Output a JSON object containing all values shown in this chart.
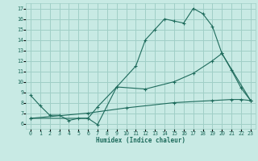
{
  "background_color": "#c8eae4",
  "grid_color": "#a0cfc7",
  "line_color": "#1e6b5c",
  "xlabel": "Humidex (Indice chaleur)",
  "xlim": [
    -0.5,
    23.5
  ],
  "ylim": [
    5.5,
    17.5
  ],
  "xticks": [
    0,
    1,
    2,
    3,
    4,
    5,
    6,
    7,
    8,
    9,
    10,
    11,
    12,
    13,
    14,
    15,
    16,
    17,
    18,
    19,
    20,
    21,
    22,
    23
  ],
  "yticks": [
    6,
    7,
    8,
    9,
    10,
    11,
    12,
    13,
    14,
    15,
    16,
    17
  ],
  "curve1_x": [
    0,
    1,
    2,
    3,
    4,
    5,
    6,
    7,
    9,
    11,
    12,
    13,
    14,
    15,
    16,
    17,
    18,
    19,
    20,
    21,
    22,
    23
  ],
  "curve1_y": [
    8.7,
    7.7,
    6.8,
    6.8,
    6.3,
    6.5,
    6.5,
    5.9,
    9.5,
    11.5,
    14.0,
    15.0,
    16.0,
    15.8,
    15.6,
    17.0,
    16.5,
    15.3,
    12.7,
    11.1,
    9.4,
    8.2
  ],
  "curve2_x": [
    0,
    6,
    7,
    9,
    12,
    15,
    17,
    19,
    20,
    23
  ],
  "curve2_y": [
    6.5,
    6.5,
    7.6,
    9.5,
    9.3,
    10.0,
    10.8,
    12.0,
    12.7,
    8.2
  ],
  "curve3_x": [
    0,
    6,
    10,
    15,
    19,
    21,
    22,
    23
  ],
  "curve3_y": [
    6.5,
    7.0,
    7.5,
    8.0,
    8.2,
    8.3,
    8.3,
    8.2
  ]
}
